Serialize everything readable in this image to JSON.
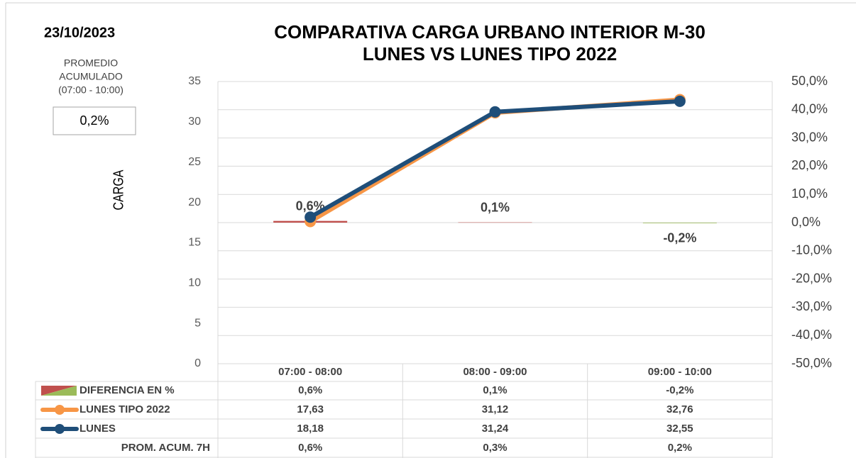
{
  "date": "23/10/2023",
  "summary": {
    "label": [
      "PROMEDIO",
      "ACUMULADO",
      "(07:00 - 10:00)"
    ],
    "value": "0,2%"
  },
  "chart_data": {
    "type": "combo",
    "title": [
      "COMPARATIVA CARGA URBANO INTERIOR M-30",
      "LUNES VS LUNES TIPO 2022"
    ],
    "ylabel": "CARGA",
    "categories": [
      "07:00 - 08:00",
      "08:00 - 09:00",
      "09:00 - 10:00"
    ],
    "ylim": [
      0,
      35
    ],
    "yticks": [
      0,
      5,
      10,
      15,
      20,
      25,
      30,
      35
    ],
    "y2lim": [
      -50,
      50
    ],
    "y2ticks": [
      {
        "value": -50,
        "label": "-50,0%"
      },
      {
        "value": -40,
        "label": "-40,0%"
      },
      {
        "value": -30,
        "label": "-30,0%"
      },
      {
        "value": -20,
        "label": "-20,0%"
      },
      {
        "value": -10,
        "label": "-10,0%"
      },
      {
        "value": 0,
        "label": "0,0%"
      },
      {
        "value": 10,
        "label": "10,0%"
      },
      {
        "value": 20,
        "label": "20,0%"
      },
      {
        "value": 30,
        "label": "30,0%"
      },
      {
        "value": 40,
        "label": "40,0%"
      },
      {
        "value": 50,
        "label": "50,0%"
      }
    ],
    "grid": true,
    "series": [
      {
        "name": "DIFERENCIA EN %",
        "type": "bar",
        "axis": "y2",
        "color": "#c0504d",
        "negative_color": "#9bbb59",
        "values": [
          0.6,
          0.1,
          -0.2
        ],
        "value_labels": [
          "0,6%",
          "0,1%",
          "-0,2%"
        ]
      },
      {
        "name": "LUNES TIPO 2022",
        "type": "line",
        "color": "#f79646",
        "values": [
          17.63,
          31.12,
          32.76
        ],
        "value_labels": [
          "17,63",
          "31,12",
          "32,76"
        ]
      },
      {
        "name": "LUNES",
        "type": "line",
        "color": "#1f4e79",
        "values": [
          18.18,
          31.24,
          32.55
        ],
        "value_labels": [
          "18,18",
          "31,24",
          "32,55"
        ]
      },
      {
        "name": "PROM. ACUM. 7H",
        "type": "table",
        "values": [
          0.6,
          0.3,
          0.2
        ],
        "value_labels": [
          "0,6%",
          "0,3%",
          "0,2%"
        ]
      }
    ]
  }
}
